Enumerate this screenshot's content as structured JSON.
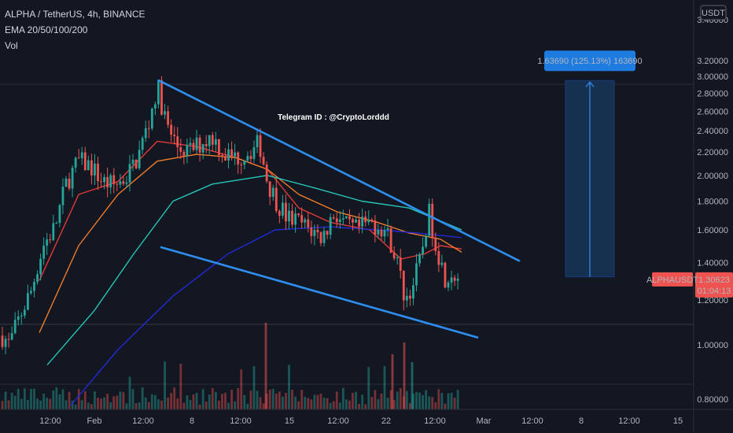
{
  "header": {
    "title": "ALPHA / TetherUS, 4h, BINANCE",
    "indicator": "EMA 20/50/100/200",
    "volume": "Vol"
  },
  "price_scale": {
    "currency_button": "USDT"
  },
  "annotation": "Telegram ID : @CryptoLorddd",
  "measure_label": "1.63690 (125.13%) 163690",
  "symbol_tag": "ALPHAUSDT",
  "last_price": "1.30623",
  "countdown": "01:04:13",
  "colors": {
    "background": "#131722",
    "up": "#26a69a",
    "down": "#ef5350",
    "trendline": "#2f8ff0",
    "ema20": "#e53935",
    "ema50": "#f07b2a",
    "ema100": "#26c6b8",
    "ema200": "#2329d6",
    "target_box": "#16314f",
    "label_bg": "#1e7ce0",
    "price_tag": "#ef5350"
  },
  "chart_data": {
    "type": "candlestick",
    "y_axis": {
      "scale": "log",
      "ylim": [
        0.77,
        3.48
      ],
      "ticks": [
        "3.20000",
        "3.00000",
        "2.80000",
        "2.60000",
        "2.40000",
        "2.20000",
        "2.00000",
        "1.80000",
        "1.60000",
        "1.40000",
        "1.20000",
        "1.00000",
        "0.80000"
      ]
    },
    "x_axis": {
      "ticks": [
        "12:00",
        "Feb",
        "12:00",
        "8",
        "12:00",
        "15",
        "12:00",
        "22",
        "12:00",
        "Mar",
        "12:00",
        "8",
        "12:00",
        "15"
      ]
    },
    "price_path": [
      [
        0,
        1.05
      ],
      [
        12,
        1.0
      ],
      [
        25,
        1.12
      ],
      [
        40,
        1.25
      ],
      [
        55,
        1.5
      ],
      [
        70,
        1.62
      ],
      [
        85,
        1.95
      ],
      [
        100,
        2.12
      ],
      [
        115,
        2.08
      ],
      [
        130,
        1.95
      ],
      [
        145,
        1.92
      ],
      [
        160,
        1.98
      ],
      [
        175,
        2.15
      ],
      [
        190,
        2.5
      ],
      [
        200,
        2.88
      ],
      [
        212,
        2.45
      ],
      [
        225,
        2.25
      ],
      [
        240,
        2.2
      ],
      [
        255,
        2.28
      ],
      [
        270,
        2.35
      ],
      [
        285,
        2.18
      ],
      [
        300,
        2.15
      ],
      [
        315,
        2.2
      ],
      [
        330,
        2.28
      ],
      [
        340,
        1.95
      ],
      [
        350,
        1.82
      ],
      [
        365,
        1.68
      ],
      [
        380,
        1.65
      ],
      [
        395,
        1.6
      ],
      [
        410,
        1.55
      ],
      [
        425,
        1.72
      ],
      [
        440,
        1.62
      ],
      [
        455,
        1.6
      ],
      [
        470,
        1.65
      ],
      [
        485,
        1.62
      ],
      [
        495,
        1.55
      ],
      [
        505,
        1.4
      ],
      [
        515,
        1.2
      ],
      [
        525,
        1.28
      ],
      [
        535,
        1.42
      ],
      [
        545,
        1.72
      ],
      [
        555,
        1.5
      ],
      [
        565,
        1.32
      ],
      [
        575,
        1.35
      ],
      [
        585,
        1.31
      ]
    ],
    "ema20_path": [
      [
        50,
        1.3
      ],
      [
        100,
        1.85
      ],
      [
        150,
        1.95
      ],
      [
        200,
        2.3
      ],
      [
        250,
        2.25
      ],
      [
        300,
        2.15
      ],
      [
        340,
        2.05
      ],
      [
        380,
        1.75
      ],
      [
        420,
        1.65
      ],
      [
        470,
        1.6
      ],
      [
        510,
        1.42
      ],
      [
        540,
        1.45
      ],
      [
        560,
        1.5
      ],
      [
        587,
        1.48
      ]
    ],
    "ema50_path": [
      [
        50,
        1.05
      ],
      [
        100,
        1.5
      ],
      [
        150,
        1.85
      ],
      [
        200,
        2.12
      ],
      [
        250,
        2.18
      ],
      [
        300,
        2.15
      ],
      [
        340,
        2.05
      ],
      [
        380,
        1.85
      ],
      [
        430,
        1.72
      ],
      [
        480,
        1.65
      ],
      [
        520,
        1.58
      ],
      [
        560,
        1.54
      ],
      [
        587,
        1.46
      ]
    ],
    "ema100_path": [
      [
        60,
        0.92
      ],
      [
        120,
        1.15
      ],
      [
        170,
        1.45
      ],
      [
        220,
        1.8
      ],
      [
        270,
        1.93
      ],
      [
        340,
        2.0
      ],
      [
        400,
        1.9
      ],
      [
        460,
        1.8
      ],
      [
        520,
        1.75
      ],
      [
        560,
        1.66
      ],
      [
        587,
        1.6
      ]
    ],
    "ema200_path": [
      [
        90,
        0.78
      ],
      [
        150,
        0.98
      ],
      [
        220,
        1.22
      ],
      [
        290,
        1.45
      ],
      [
        350,
        1.6
      ],
      [
        420,
        1.62
      ],
      [
        480,
        1.6
      ],
      [
        530,
        1.58
      ],
      [
        587,
        1.55
      ]
    ],
    "trendlines": [
      {
        "from": [
          202,
          2.95
        ],
        "to": [
          660,
          1.41
        ]
      },
      {
        "from": [
          205,
          1.49
        ],
        "to": [
          607,
          1.03
        ]
      }
    ],
    "target": {
      "from": 1.32,
      "to": 2.95,
      "change": "1.63690 (125.13%) 163690"
    },
    "last_price": 1.30623
  }
}
